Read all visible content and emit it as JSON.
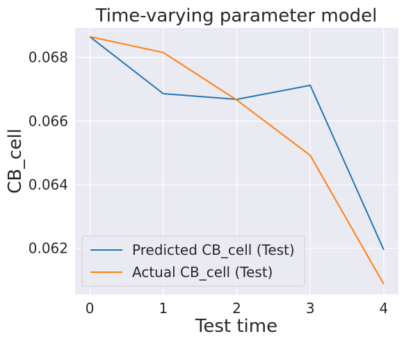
{
  "chart_data": {
    "type": "line",
    "title": "Time-varying parameter model",
    "xlabel": "Test time",
    "ylabel": "CB_cell",
    "x": [
      0,
      1,
      2,
      3,
      4
    ],
    "xticks": [
      "0",
      "1",
      "2",
      "3",
      "4"
    ],
    "yticks": [
      "0.062",
      "0.064",
      "0.066",
      "0.068"
    ],
    "xlim": [
      -0.2,
      4.2
    ],
    "ylim": [
      0.06055,
      0.06893
    ],
    "grid": true,
    "legend_position": "lower-left",
    "series": [
      {
        "name": "Predicted CB_cell (Test)",
        "color": "#1f77b4",
        "values": [
          0.06865,
          0.06686,
          0.06668,
          0.06712,
          0.06195
        ]
      },
      {
        "name": "Actual CB_cell (Test)",
        "color": "#ff7f0e",
        "values": [
          0.06865,
          0.06815,
          0.06666,
          0.06492,
          0.06087
        ]
      }
    ]
  }
}
